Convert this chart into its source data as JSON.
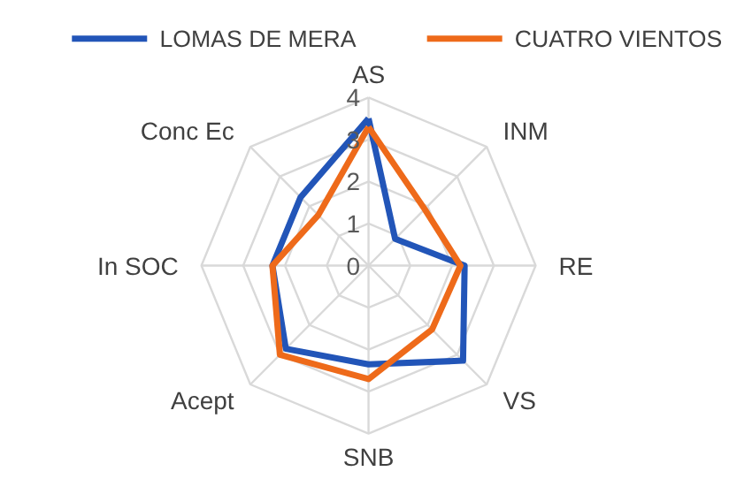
{
  "chart_data": {
    "type": "radar",
    "categories": [
      "AS",
      "INM",
      "RE",
      "VS",
      "SNB",
      "Acept",
      "In SOC",
      "Conc Ec"
    ],
    "ylim": [
      0,
      4
    ],
    "yticks": [
      0,
      1,
      2,
      3,
      4
    ],
    "grid": true,
    "legend": "top",
    "series": [
      {
        "name": "LOMAS DE MERA",
        "color": "#2255b8",
        "values": [
          3.5,
          0.9,
          2.3,
          3.2,
          2.35,
          2.8,
          2.3,
          2.3
        ]
      },
      {
        "name": "CUATRO VIENTOS",
        "color": "#ee6a1a",
        "values": [
          3.3,
          1.9,
          2.2,
          2.15,
          2.7,
          3.0,
          2.3,
          1.7
        ]
      }
    ]
  }
}
